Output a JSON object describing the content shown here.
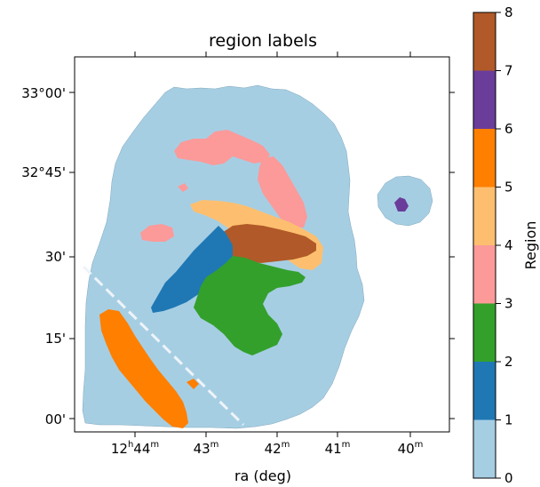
{
  "chart_data": {
    "type": "heatmap",
    "title": "region labels",
    "xlabel": "ra (deg)",
    "ylabel": "",
    "x_ticks": [
      {
        "main": "12",
        "sup1": "h",
        "mid": "44",
        "sup2": "m"
      },
      {
        "main": "43",
        "sup1": "",
        "mid": "",
        "sup2": "m"
      },
      {
        "main": "42",
        "sup1": "",
        "mid": "",
        "sup2": "m"
      },
      {
        "main": "41",
        "sup1": "",
        "mid": "",
        "sup2": "m"
      },
      {
        "main": "40",
        "sup1": "",
        "mid": "",
        "sup2": "m"
      }
    ],
    "y_ticks": [
      "33°00'",
      "32°45'",
      "30'",
      "15'",
      "00'"
    ],
    "colorbar": {
      "label": "Region",
      "min": 0,
      "max": 8,
      "ticks": [
        "0",
        "1",
        "2",
        "3",
        "4",
        "5",
        "6",
        "7",
        "8"
      ],
      "colors": [
        "#a6cee3",
        "#1f78b4",
        "#33a02c",
        "#fb9a99",
        "#fdbf6f",
        "#ff7f00",
        "#6a3d9a",
        "#b15928"
      ]
    },
    "regions": [
      {
        "value": 0,
        "color": "#a6cee3"
      },
      {
        "value": 1,
        "color": "#1f78b4"
      },
      {
        "value": 2,
        "color": "#33a02c"
      },
      {
        "value": 3,
        "color": "#fb9a99"
      },
      {
        "value": 4,
        "color": "#fdbf6f"
      },
      {
        "value": 5,
        "color": "#ff7f00"
      },
      {
        "value": 6,
        "color": "#6a3d9a"
      },
      {
        "value": 7,
        "color": "#b15928"
      }
    ],
    "annotation_line": {
      "style": "dashed",
      "color": "#eef4fa"
    }
  }
}
